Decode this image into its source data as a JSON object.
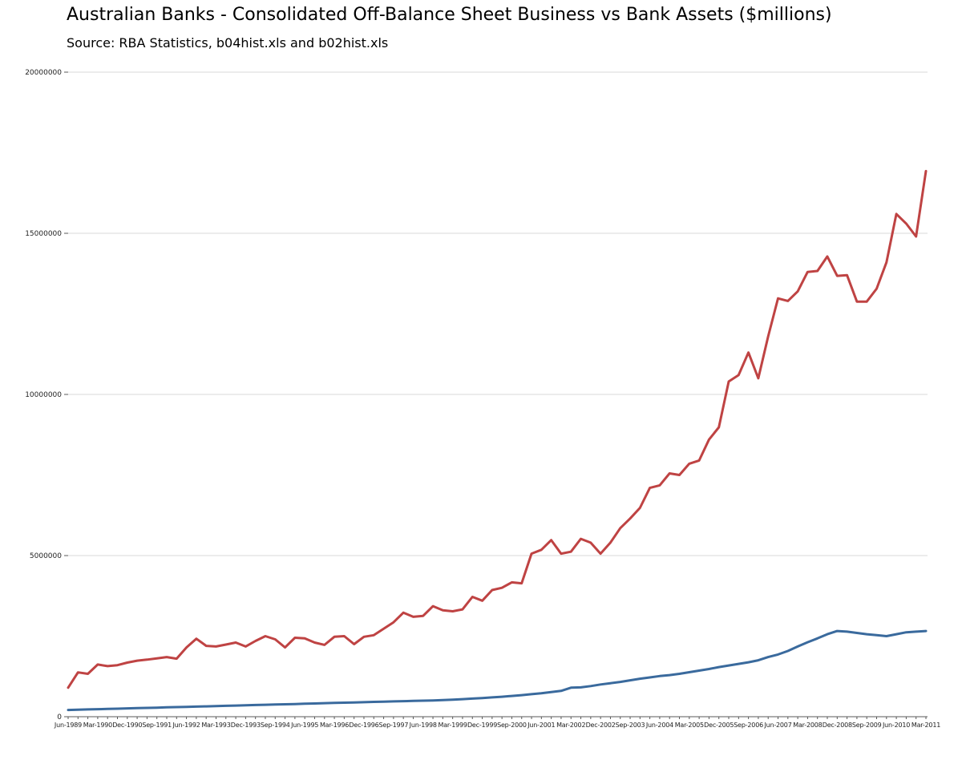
{
  "chart_data": {
    "type": "line",
    "title": "Australian Banks - Consolidated Off-Balance Sheet Business vs Bank Assets ($millions)",
    "subtitle": "Source: RBA Statistics, b04hist.xls and b02hist.xls",
    "xlabel": "",
    "ylabel": "",
    "ylim": [
      0,
      20000000
    ],
    "y_ticks": [
      0,
      5000000,
      10000000,
      15000000,
      20000000
    ],
    "y_tick_labels": [
      "0",
      "5000000",
      "10000000",
      "15000000",
      "20000000"
    ],
    "grid": true,
    "legend_position": "none",
    "x_label_every": 3,
    "x": [
      "Jun-1989",
      "Sep-1989",
      "Dec-1989",
      "Mar-1990",
      "Jun-1990",
      "Sep-1990",
      "Dec-1990",
      "Mar-1991",
      "Jun-1991",
      "Sep-1991",
      "Dec-1991",
      "Mar-1992",
      "Jun-1992",
      "Sep-1992",
      "Dec-1992",
      "Mar-1993",
      "Jun-1993",
      "Sep-1993",
      "Dec-1993",
      "Mar-1994",
      "Jun-1994",
      "Sep-1994",
      "Dec-1994",
      "Mar-1995",
      "Jun-1995",
      "Sep-1995",
      "Dec-1995",
      "Mar-1996",
      "Jun-1996",
      "Sep-1996",
      "Dec-1996",
      "Mar-1997",
      "Jun-1997",
      "Sep-1997",
      "Dec-1997",
      "Mar-1998",
      "Jun-1998",
      "Sep-1998",
      "Dec-1998",
      "Mar-1999",
      "Jun-1999",
      "Sep-1999",
      "Dec-1999",
      "Mar-2000",
      "Jun-2000",
      "Sep-2000",
      "Dec-2000",
      "Mar-2001",
      "Jun-2001",
      "Sep-2001",
      "Dec-2001",
      "Mar-2002",
      "Jun-2002",
      "Sep-2002",
      "Dec-2002",
      "Mar-2003",
      "Jun-2003",
      "Sep-2003",
      "Dec-2003",
      "Mar-2004",
      "Jun-2004",
      "Sep-2004",
      "Dec-2004",
      "Mar-2005",
      "Jun-2005",
      "Sep-2005",
      "Dec-2005",
      "Mar-2006",
      "Jun-2006",
      "Sep-2006",
      "Dec-2006",
      "Mar-2007",
      "Jun-2007",
      "Sep-2007",
      "Dec-2007",
      "Mar-2008",
      "Jun-2008",
      "Sep-2008",
      "Dec-2008",
      "Mar-2009",
      "Jun-2009",
      "Sep-2009",
      "Dec-2009",
      "Mar-2010",
      "Jun-2010",
      "Sep-2010",
      "Dec-2010",
      "Mar-2011"
    ],
    "series": [
      {
        "name": "Consolidated Off-Balance Sheet Business",
        "color": "#bf4343",
        "values": [
          900000,
          1375000,
          1330000,
          1620000,
          1570000,
          1600000,
          1680000,
          1740000,
          1770000,
          1810000,
          1850000,
          1800000,
          2150000,
          2420000,
          2200000,
          2180000,
          2240000,
          2300000,
          2180000,
          2350000,
          2500000,
          2400000,
          2150000,
          2450000,
          2430000,
          2300000,
          2230000,
          2480000,
          2500000,
          2250000,
          2480000,
          2530000,
          2730000,
          2930000,
          3230000,
          3100000,
          3130000,
          3430000,
          3300000,
          3270000,
          3330000,
          3720000,
          3600000,
          3930000,
          4000000,
          4170000,
          4140000,
          5060000,
          5180000,
          5480000,
          5060000,
          5120000,
          5520000,
          5400000,
          5060000,
          5400000,
          5850000,
          6150000,
          6480000,
          7100000,
          7180000,
          7550000,
          7500000,
          7850000,
          7950000,
          8600000,
          8980000,
          10400000,
          10600000,
          11300000,
          10500000,
          11800000,
          12980000,
          12900000,
          13200000,
          13800000,
          13830000,
          14280000,
          13680000,
          13700000,
          12880000,
          12880000,
          13280000,
          14100000,
          15600000,
          15300000,
          14900000,
          16930000
        ]
      },
      {
        "name": "Bank Assets",
        "color": "#3a6a9d",
        "values": [
          210000,
          218000,
          226000,
          234000,
          242000,
          250000,
          258000,
          266000,
          274000,
          282000,
          290000,
          298000,
          306000,
          314000,
          322000,
          330000,
          338000,
          346000,
          354000,
          362000,
          370000,
          378000,
          386000,
          394000,
          402000,
          410000,
          420000,
          428000,
          436000,
          443000,
          451000,
          459000,
          466000,
          474000,
          482000,
          489000,
          497000,
          505000,
          515000,
          530000,
          545000,
          562000,
          580000,
          600000,
          620000,
          645000,
          670000,
          700000,
          730000,
          765000,
          800000,
          900000,
          910000,
          950000,
          1000000,
          1040000,
          1080000,
          1130000,
          1180000,
          1220000,
          1260000,
          1290000,
          1330000,
          1380000,
          1430000,
          1480000,
          1540000,
          1590000,
          1640000,
          1690000,
          1750000,
          1850000,
          1930000,
          2040000,
          2180000,
          2310000,
          2430000,
          2560000,
          2660000,
          2640000,
          2600000,
          2560000,
          2530000,
          2500000,
          2560000,
          2620000,
          2640000,
          2660000
        ]
      }
    ]
  }
}
